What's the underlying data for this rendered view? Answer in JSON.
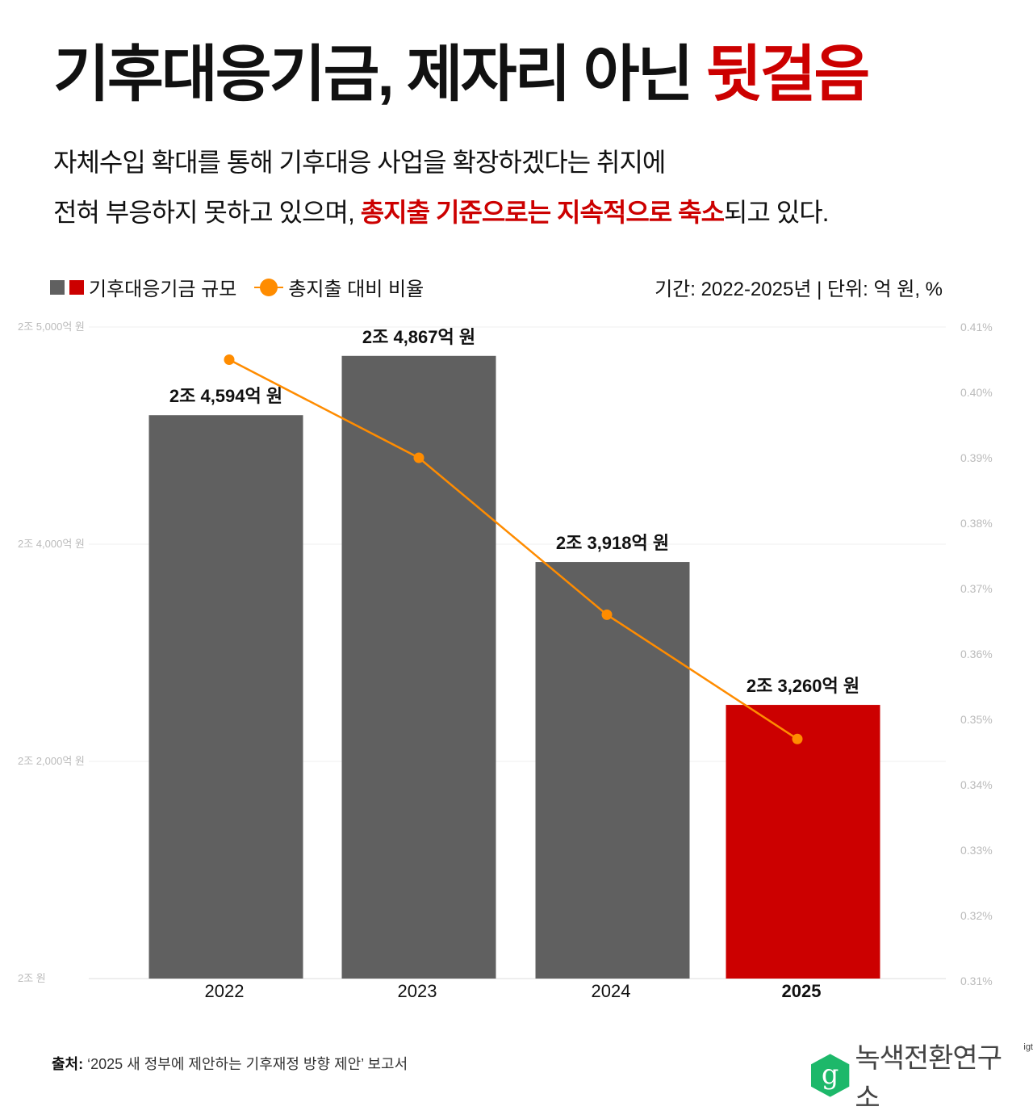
{
  "title": {
    "main": "기후대응기금, 제자리 아닌 ",
    "highlight": "뒷걸음"
  },
  "subtitle": {
    "line1": "자체수입 확대를 통해 기후대응 사업을 확장하겠다는 취지에",
    "line2_pre": "전혀 부응하지 못하고 있으며, ",
    "line2_highlight": "총지출 기준으로는 지속적으로 축소",
    "line2_post": "되고 있다."
  },
  "legend": {
    "bars": "기후대응기금 규모",
    "line": "총지출 대비 비율"
  },
  "period": "기간: 2022-2025년 | 단위: 억 원, %",
  "colors": {
    "bar": "#606060",
    "highlight_bar": "#cc0000",
    "line": "#ff8c00",
    "accent": "#cc0000",
    "logo": "#1db86a"
  },
  "chart_data": {
    "type": "bar+line",
    "categories": [
      "2022",
      "2023",
      "2024",
      "2025"
    ],
    "highlight_category": "2025",
    "series": [
      {
        "name": "기후대응기금 규모",
        "type": "bar",
        "axis": "left",
        "unit": "억 원",
        "values": [
          24594,
          24867,
          23918,
          23260
        ],
        "labels": [
          "2조 4,594억 원",
          "2조 4,867억 원",
          "2조 3,918억 원",
          "2조 3,260억 원"
        ]
      },
      {
        "name": "총지출 대비 비율",
        "type": "line",
        "axis": "right",
        "unit": "%",
        "values": [
          0.405,
          0.39,
          0.366,
          0.347
        ]
      }
    ],
    "left_axis": {
      "ylim": [
        22000,
        25000
      ],
      "tick_labels": [
        "2조 5,000억 원",
        "2조 4,000억 원",
        "2조 2,000억 원",
        "2조 원"
      ]
    },
    "right_axis": {
      "ylim": [
        0.31,
        0.41
      ],
      "tick_labels": [
        "0.41%",
        "0.40%",
        "0.39%",
        "0.38%",
        "0.37%",
        "0.36%",
        "0.35%",
        "0.34%",
        "0.33%",
        "0.32%",
        "0.31%"
      ]
    },
    "grid": true,
    "legend_placement": "top-left"
  },
  "footer": {
    "source_label": "출처:",
    "source_text": " ‘2025 새 정부에 제안하는 기후재정 방향 제안’ 보고서"
  },
  "logo": {
    "mark": "g",
    "name": "녹색전환연구소",
    "suffix": "igt"
  }
}
